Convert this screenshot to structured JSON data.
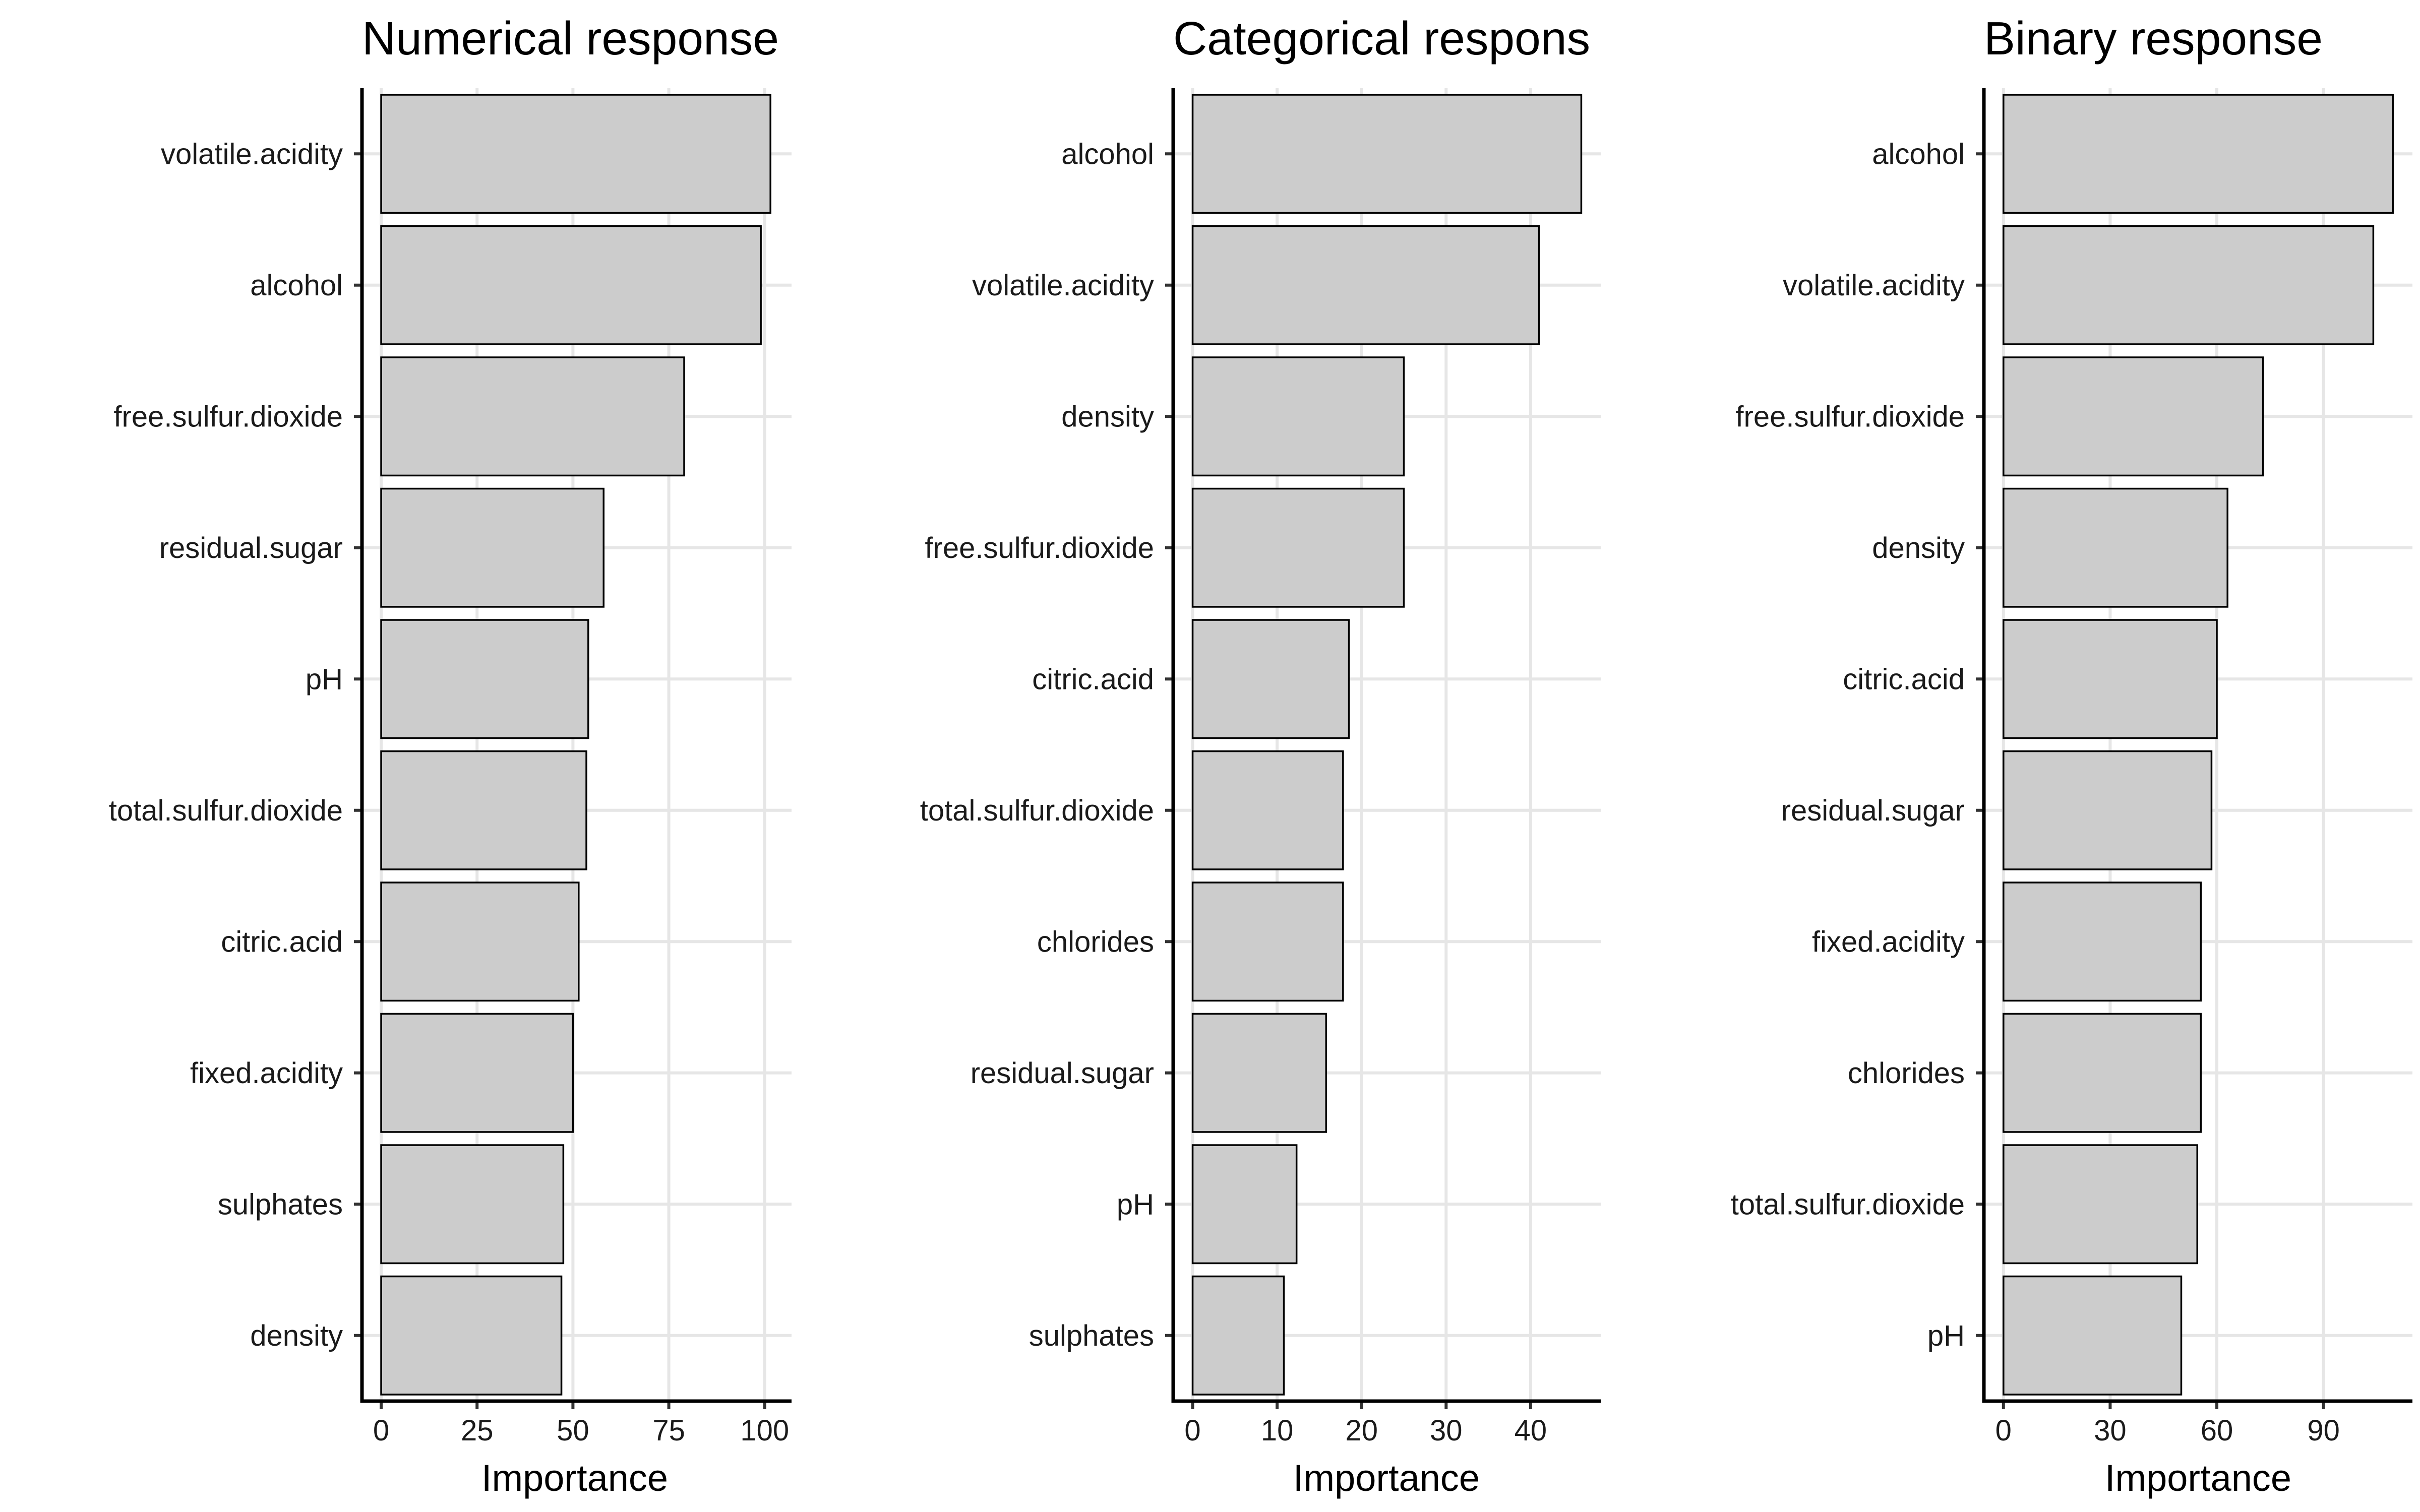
{
  "chart_data": [
    {
      "type": "bar",
      "orientation": "horizontal",
      "title": "Numerical response",
      "xlabel": "Importance",
      "ylabel": "",
      "categories": [
        "volatile.acidity",
        "alcohol",
        "free.sulfur.dioxide",
        "residual.sugar",
        "pH",
        "total.sulfur.dioxide",
        "citric.acid",
        "fixed.acidity",
        "sulphates",
        "density"
      ],
      "values": [
        101.5,
        99,
        79,
        58,
        54,
        53.5,
        51.5,
        50,
        47.5,
        47
      ],
      "xlim": [
        -5,
        107
      ],
      "xticks": [
        0,
        25,
        50,
        75,
        100
      ],
      "xtick_labels": [
        "0",
        "25",
        "50",
        "75",
        "100"
      ],
      "grid": true,
      "bar_fill": "#cccccc",
      "bar_stroke": "#000000"
    },
    {
      "type": "bar",
      "orientation": "horizontal",
      "title": "Categorical respons",
      "xlabel": "Importance",
      "ylabel": "",
      "categories": [
        "alcohol",
        "volatile.acidity",
        "density",
        "free.sulfur.dioxide",
        "citric.acid",
        "total.sulfur.dioxide",
        "chlorides",
        "residual.sugar",
        "pH",
        "sulphates"
      ],
      "values": [
        46,
        41,
        25,
        25,
        18.5,
        17.8,
        17.8,
        15.8,
        12.3,
        10.8
      ],
      "xlim": [
        -2.3,
        48.3
      ],
      "xticks": [
        0,
        10,
        20,
        30,
        40
      ],
      "xtick_labels": [
        "0",
        "10",
        "20",
        "30",
        "40"
      ],
      "grid": true,
      "bar_fill": "#cccccc",
      "bar_stroke": "#000000"
    },
    {
      "type": "bar",
      "orientation": "horizontal",
      "title": "Binary response",
      "xlabel": "Importance",
      "ylabel": "",
      "categories": [
        "alcohol",
        "volatile.acidity",
        "free.sulfur.dioxide",
        "density",
        "citric.acid",
        "residual.sugar",
        "fixed.acidity",
        "chlorides",
        "total.sulfur.dioxide",
        "pH"
      ],
      "values": [
        109.5,
        104,
        73,
        63,
        60,
        58.5,
        55.5,
        55.5,
        54.5,
        50
      ],
      "xlim": [
        -5.5,
        115
      ],
      "xticks": [
        0,
        30,
        60,
        90
      ],
      "xtick_labels": [
        "0",
        "30",
        "60",
        "90"
      ],
      "grid": true,
      "bar_fill": "#cccccc",
      "bar_stroke": "#000000"
    }
  ]
}
